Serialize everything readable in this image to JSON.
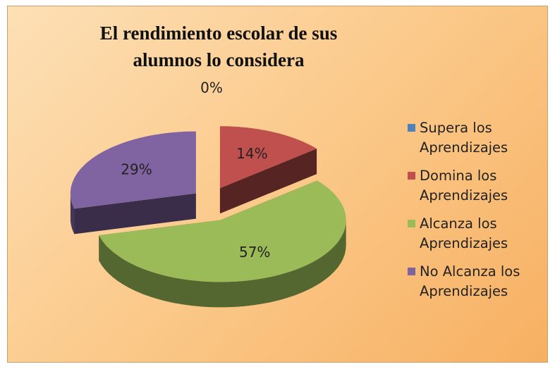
{
  "chart_data": {
    "type": "pie",
    "title": "El rendimiento escolar de sus alumnos lo considera",
    "categories": [
      "Supera los Aprendizajes",
      "Domina los Aprendizajes",
      "Alcanza los Aprendizajes",
      "No Alcanza los Aprendizajes"
    ],
    "values": [
      0,
      14,
      57,
      29
    ],
    "value_labels": [
      "0%",
      "14%",
      "57%",
      "29%"
    ],
    "colors": [
      "#4f81bd",
      "#c0504d",
      "#9bbb59",
      "#8064a2"
    ],
    "legend": "right"
  }
}
